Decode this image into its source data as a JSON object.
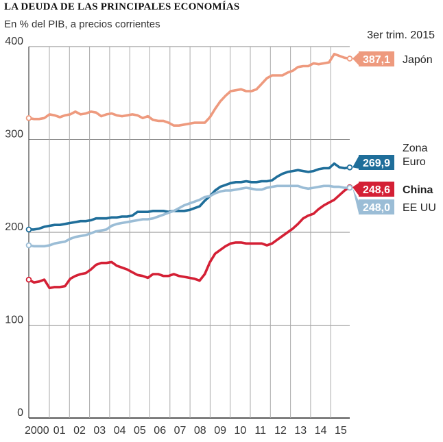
{
  "chart_data": {
    "type": "line",
    "title": "LA DEUDA DE LAS PRINCIPALES ECONOMÍAS",
    "subtitle": "En % del PIB, a precios corrientes",
    "period_label": "3er trim. 2015",
    "y_ticks": [
      "0",
      "100",
      "200",
      "300",
      "400"
    ],
    "ylim": [
      0,
      400
    ],
    "x_tick_labels": [
      "2000",
      "01",
      "02",
      "03",
      "04",
      "05",
      "06",
      "07",
      "08",
      "09",
      "10",
      "11",
      "12",
      "13",
      "14",
      "15"
    ],
    "x": [
      "2000",
      "2000.25",
      "2000.5",
      "2000.75",
      "2001",
      "2001.25",
      "2001.5",
      "2001.75",
      "2002",
      "2002.25",
      "2002.5",
      "2002.75",
      "2003",
      "2003.25",
      "2003.5",
      "2003.75",
      "2004",
      "2004.25",
      "2004.5",
      "2004.75",
      "2005",
      "2005.25",
      "2005.5",
      "2005.75",
      "2006",
      "2006.25",
      "2006.5",
      "2006.75",
      "2007",
      "2007.25",
      "2007.5",
      "2007.75",
      "2008",
      "2008.25",
      "2008.5",
      "2008.75",
      "2009",
      "2009.25",
      "2009.5",
      "2009.75",
      "2010",
      "2010.25",
      "2010.5",
      "2010.75",
      "2011",
      "2011.25",
      "2011.5",
      "2011.75",
      "2012",
      "2012.25",
      "2012.5",
      "2012.75",
      "2013",
      "2013.25",
      "2013.5",
      "2013.75",
      "2014",
      "2014.25",
      "2014.5",
      "2014.75",
      "2015",
      "2015.25",
      "2015.5"
    ],
    "grid": true,
    "series": [
      {
        "name": "Japón",
        "label_lines": [
          "Japón"
        ],
        "bold": false,
        "color": "#ee9a7e",
        "end_value": "387,1",
        "values": [
          323,
          322,
          322,
          323,
          327,
          326,
          324,
          326,
          327,
          330,
          327,
          328,
          330,
          329,
          325,
          327,
          328,
          326,
          325,
          326,
          327,
          326,
          323,
          325,
          321,
          320,
          320,
          318,
          315,
          315,
          316,
          317,
          318,
          318,
          318,
          324,
          333,
          341,
          347,
          352,
          353,
          354,
          352,
          352,
          354,
          360,
          366,
          369,
          369,
          369,
          372,
          374,
          378,
          379,
          379,
          382,
          381,
          382,
          383,
          392,
          390,
          388,
          387.1
        ]
      },
      {
        "name": "Zona Euro",
        "label_lines": [
          "Zona",
          "Euro"
        ],
        "bold": false,
        "color": "#1f6e9a",
        "end_value": "269,9",
        "values": [
          203,
          203,
          204,
          206,
          207,
          208,
          208,
          209,
          210,
          211,
          212,
          212,
          213,
          215,
          215,
          215,
          216,
          216,
          217,
          217,
          218,
          222,
          222,
          222,
          223,
          223,
          223,
          222,
          223,
          223,
          223,
          224,
          226,
          228,
          234,
          239,
          245,
          249,
          251,
          253,
          254,
          254,
          255,
          254,
          254,
          255,
          255,
          256,
          260,
          263,
          265,
          266,
          267,
          266,
          265,
          266,
          268,
          269,
          269,
          274,
          270,
          269,
          269.9
        ]
      },
      {
        "name": "China",
        "label_lines": [
          "China"
        ],
        "bold": true,
        "color": "#d42035",
        "end_value": "248,6",
        "values": [
          149,
          146,
          147,
          149,
          140,
          141,
          141,
          142,
          150,
          153,
          155,
          156,
          160,
          165,
          167,
          167,
          168,
          164,
          162,
          160,
          157,
          154,
          153,
          151,
          155,
          155,
          153,
          153,
          155,
          153,
          152,
          151,
          150,
          148,
          155,
          168,
          177,
          181,
          185,
          188,
          189,
          189,
          188,
          188,
          188,
          188,
          186,
          188,
          192,
          196,
          200,
          204,
          209,
          215,
          218,
          220,
          225,
          229,
          232,
          235,
          240,
          245,
          248.6
        ]
      },
      {
        "name": "EE UU",
        "label_lines": [
          "EE UU"
        ],
        "bold": false,
        "color": "#9bbdd6",
        "end_value": "248,0",
        "values": [
          186,
          185,
          185,
          185,
          186,
          188,
          189,
          190,
          193,
          195,
          196,
          197,
          199,
          201,
          202,
          203,
          207,
          209,
          210,
          211,
          212,
          213,
          214,
          214,
          215,
          217,
          219,
          221,
          223,
          226,
          229,
          231,
          233,
          235,
          238,
          239,
          242,
          244,
          245,
          245,
          246,
          247,
          248,
          247,
          246,
          246,
          248,
          249,
          250,
          250,
          250,
          250,
          250,
          248,
          247,
          248,
          249,
          250,
          250,
          249,
          249,
          248,
          248.0
        ]
      }
    ]
  }
}
